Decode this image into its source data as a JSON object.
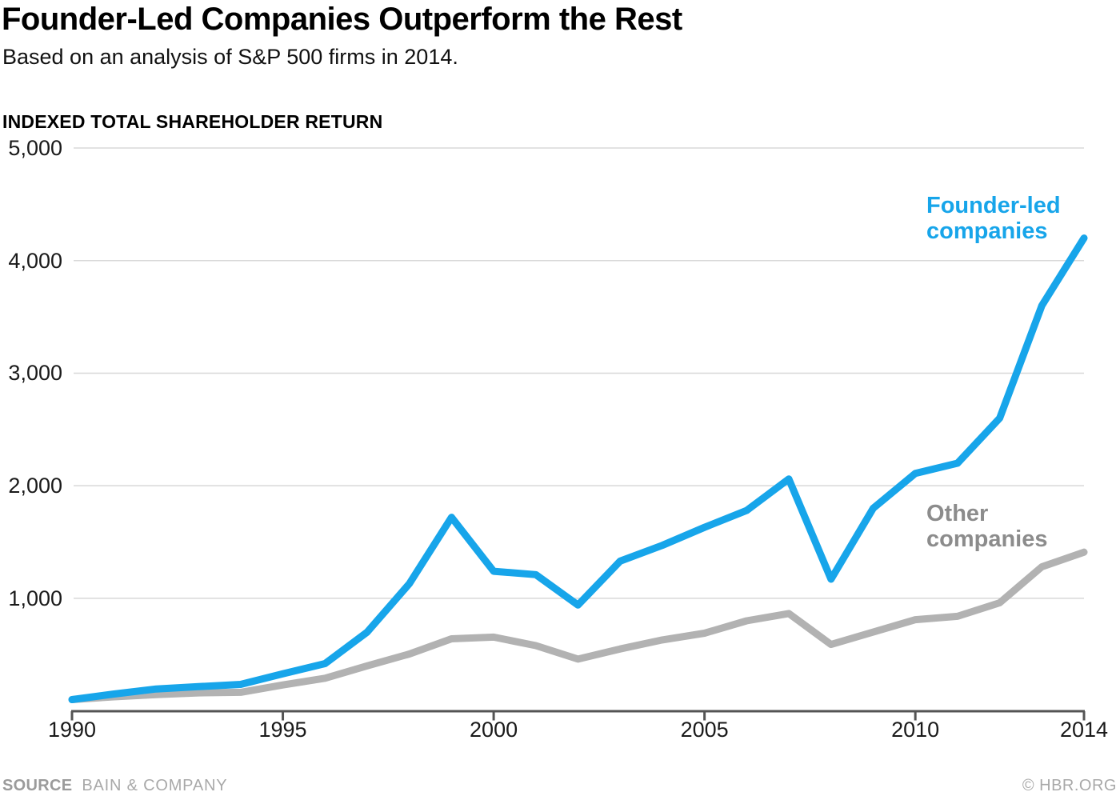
{
  "header": {
    "title": "Founder-Led Companies Outperform the Rest",
    "subtitle": "Based on an analysis of S&P 500 firms in 2014."
  },
  "chart": {
    "founder_label": "Founder-led\ncompanies",
    "other_label": "Other\ncompanies"
  },
  "chart_data": {
    "type": "line",
    "title": "Founder-Led Companies Outperform the Rest",
    "subtitle": "Based on an analysis of S&P 500 firms in 2014.",
    "xlabel": "",
    "ylabel": "INDEXED TOTAL SHAREHOLDER RETURN",
    "xlim": [
      1990,
      2014
    ],
    "ylim": [
      0,
      5000
    ],
    "grid": "horizontal",
    "legend": "inline-labels",
    "x": [
      1990,
      1991,
      1992,
      1993,
      1994,
      1995,
      1996,
      1997,
      1998,
      1999,
      2000,
      2001,
      2002,
      2003,
      2004,
      2005,
      2006,
      2007,
      2008,
      2009,
      2010,
      2011,
      2012,
      2013,
      2014
    ],
    "series": [
      {
        "name": "Founder-led companies",
        "color": "#17a5ea",
        "values": [
          100,
          150,
          195,
          215,
          235,
          330,
          420,
          700,
          1130,
          1720,
          1240,
          1210,
          940,
          1330,
          1470,
          1630,
          1780,
          2060,
          1170,
          1800,
          2110,
          2200,
          2600,
          3600,
          4200
        ]
      },
      {
        "name": "Other companies",
        "color": "#b2b2b2",
        "values": [
          100,
          125,
          145,
          160,
          165,
          230,
          290,
          400,
          505,
          640,
          655,
          580,
          460,
          550,
          630,
          690,
          800,
          865,
          590,
          700,
          810,
          840,
          960,
          1280,
          1410
        ]
      }
    ],
    "y_ticks": [
      {
        "value": 5000,
        "label": "5,000"
      },
      {
        "value": 4000,
        "label": "4,000"
      },
      {
        "value": 3000,
        "label": "3,000"
      },
      {
        "value": 2000,
        "label": "2,000"
      },
      {
        "value": 1000,
        "label": "1,000"
      }
    ],
    "x_ticks": [
      {
        "value": 1990,
        "label": "1990"
      },
      {
        "value": 1995,
        "label": "1995"
      },
      {
        "value": 2000,
        "label": "2000"
      },
      {
        "value": 2005,
        "label": "2005"
      },
      {
        "value": 2010,
        "label": "2010"
      },
      {
        "value": 2014,
        "label": "2014"
      }
    ]
  },
  "footer": {
    "source_label": "SOURCE",
    "source_value": "BAIN & COMPANY",
    "copyright": "© HBR.ORG"
  },
  "colors": {
    "founder_blue": "#17a5ea",
    "other_gray": "#b2b2b2",
    "founder_label": "#17a5ea",
    "other_label": "#8c8c8c",
    "grid": "#d8d8d8",
    "axis": "#545454",
    "tick_text": "#1a1a1a"
  }
}
